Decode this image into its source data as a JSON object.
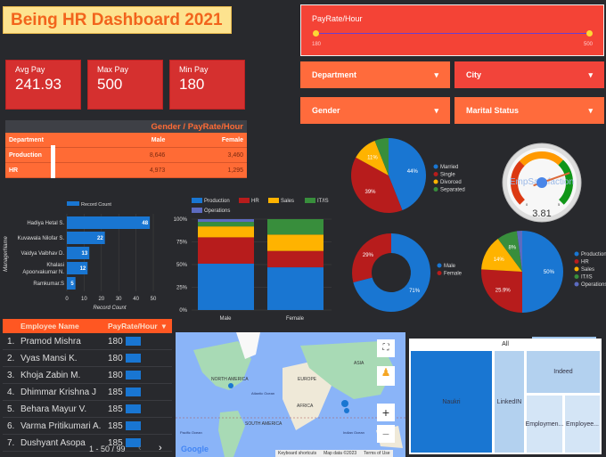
{
  "title": "Being HR Dashboard 2021",
  "kpis": [
    {
      "label": "Avg Pay",
      "value": "241.93"
    },
    {
      "label": "Max Pay",
      "value": "500"
    },
    {
      "label": "Min Pay",
      "value": "180"
    }
  ],
  "gender_table": {
    "title": "Gender / PayRate/Hour",
    "headers": [
      "Department",
      "Male",
      "Female"
    ],
    "rows": [
      [
        "Production",
        "8,646",
        "3,460"
      ],
      [
        "HR",
        "4,973",
        "1,295"
      ]
    ]
  },
  "slider": {
    "label": "PayRate/Hour",
    "min": "180",
    "max": "500"
  },
  "filters": {
    "department": "Department",
    "city": "City",
    "gender": "Gender",
    "marital": "Marital Status"
  },
  "colors": {
    "blue": "#1976d2",
    "red": "#b71c1c",
    "yellow": "#ffb300",
    "green": "#388e3c",
    "purple": "#5c6bc0",
    "orange": "#ff6b35"
  },
  "chart_data": [
    {
      "type": "bar",
      "orientation": "horizontal",
      "legend": [
        "Record Count"
      ],
      "ylabel": "ManagerName",
      "xlabel": "Record Count",
      "categories": [
        "Hadiya Hetal S.",
        "Kuvawala Nilofar S.",
        "Vaidya Vaibhav D.",
        "Khalasi Apoorvakumar N.",
        "Ramkumar.S"
      ],
      "values": [
        48,
        22,
        13,
        12,
        5
      ],
      "xticks": [
        "0",
        "10",
        "20",
        "30",
        "40",
        "50"
      ],
      "xlim": [
        0,
        50
      ]
    },
    {
      "type": "bar",
      "stacked": "percent",
      "categories": [
        "Male",
        "Female"
      ],
      "yticks": [
        "0%",
        "25%",
        "50%",
        "75%",
        "100%"
      ],
      "series": [
        {
          "name": "Production",
          "values": [
            51,
            47
          ]
        },
        {
          "name": "HR",
          "values": [
            29,
            18
          ]
        },
        {
          "name": "Sales",
          "values": [
            12,
            18
          ]
        },
        {
          "name": "IT/IS",
          "values": [
            5,
            17
          ]
        },
        {
          "name": "Operations",
          "values": [
            3,
            0
          ]
        }
      ]
    },
    {
      "type": "pie",
      "labels": [
        "Married",
        "Single",
        "Divorced",
        "Separated"
      ],
      "values": [
        44,
        39,
        11,
        6
      ],
      "data_labels": [
        "44%",
        "39%",
        "11%",
        ""
      ]
    },
    {
      "type": "gauge",
      "label": "EmpSatisfaction",
      "value": 3.81,
      "display": "3.81",
      "min": "0",
      "max": "5"
    },
    {
      "type": "pie",
      "donut": true,
      "labels": [
        "Male",
        "Female"
      ],
      "values": [
        71,
        29
      ],
      "data_labels": [
        "71%",
        "29%"
      ]
    },
    {
      "type": "pie",
      "labels": [
        "Production",
        "HR",
        "Sales",
        "IT/IS",
        "Operations"
      ],
      "values": [
        50,
        25.9,
        14,
        8,
        2.1
      ],
      "data_labels": [
        "50%",
        "25.9%",
        "14%",
        "8%",
        ""
      ]
    }
  ],
  "employees": {
    "headers": [
      "Employee Name",
      "PayRate/Hour"
    ],
    "sort_icon": "sort-down",
    "rows": [
      [
        "1.",
        "Pramod Mishra",
        "180"
      ],
      [
        "2.",
        "Vyas Mansi K.",
        "180"
      ],
      [
        "3.",
        "Khoja Zabin M.",
        "180"
      ],
      [
        "4.",
        "Dhimmar Krishna J",
        "185"
      ],
      [
        "5.",
        "Behara Mayur V.",
        "185"
      ],
      [
        "6.",
        "Varma Pritikumari A.",
        "185"
      ],
      [
        "7.",
        "Dushyant Asopa",
        "185"
      ]
    ],
    "pagination": "1 - 50 / 99"
  },
  "map": {
    "labels": [
      "NORTH AMERICA",
      "EUROPE",
      "ASIA",
      "AFRICA",
      "SOUTH AMERICA",
      "Atlantic Ocean",
      "Pacific Ocean",
      "Indian Ocean"
    ],
    "footer": [
      "Keyboard shortcuts",
      "Map data ©2023",
      "Terms of Use"
    ],
    "logo": "Google"
  },
  "treemap": {
    "root": "All",
    "nodes": [
      "Naukri",
      "LinkedIN",
      "Indeed",
      "Employmen...",
      "Employee..."
    ]
  }
}
